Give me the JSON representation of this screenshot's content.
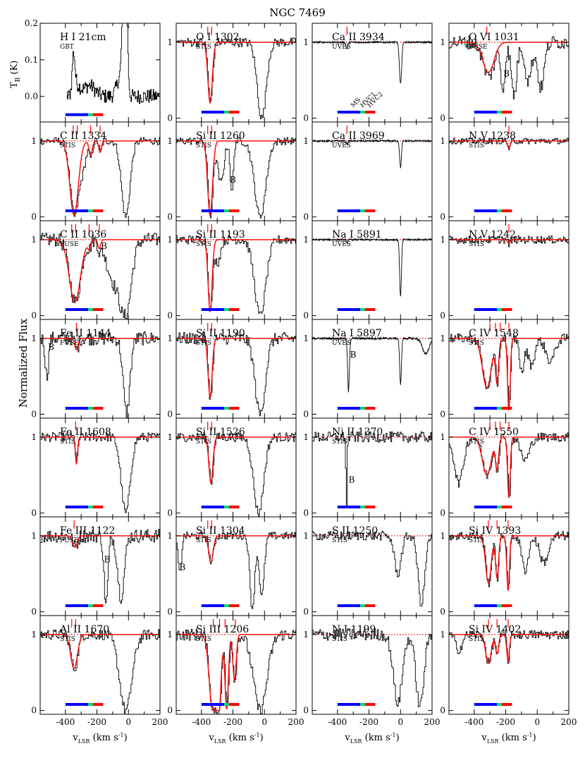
{
  "chart_data": {
    "type": "line",
    "title": "NGC 7469",
    "xlabel": "v",
    "xlabel_sub": "LSR",
    "xlabel_unit": "(km s",
    "xlabel_exp": "-1",
    "xlabel_close": ")",
    "ylabel_flux": "Normalized Flux",
    "ylabel_tb": "T",
    "ylabel_tb_sub": "B",
    "ylabel_tb_unit": "(K)",
    "xlim": [
      -560,
      200
    ],
    "xticks": [
      "-400",
      "-300",
      "-200",
      "-100",
      "0",
      "100",
      "200"
    ],
    "xtick_labels": [
      "-400",
      "-200",
      "0",
      "200"
    ],
    "ylim_flux": [
      -0.05,
      1.25
    ],
    "yticks_flux": [
      "0",
      "1"
    ],
    "ylim_hi": [
      -0.07,
      0.2
    ],
    "yticks_hi": [
      "0.2",
      "0.1",
      "0.0"
    ],
    "components": [
      {
        "name": "MS",
        "color": "#0000ff",
        "range": [
          -400,
          -255
        ]
      },
      {
        "name": "HVC1",
        "color": "#00dd66",
        "range": [
          -255,
          -225
        ]
      },
      {
        "name": "HVC2",
        "color": "#ff0000",
        "range": [
          -225,
          -160
        ]
      }
    ],
    "component_label_colors": [
      "#0000ff",
      "#00dd66",
      "#ff0000"
    ],
    "colors": {
      "data": "#000000",
      "model": "#ff0000",
      "ms": "#0000ff",
      "hvc1": "#00dd66",
      "hvc2": "#ff0000"
    },
    "panels": [
      [
        {
          "ion": "H I 21cm",
          "inst": "GBT",
          "type": "hi"
        },
        {
          "ion": "C II 1334",
          "inst": "STIS",
          "ticks": [
            -350,
            -325,
            -240,
            -180
          ],
          "absorbs": [
            [
              -345,
              0.98,
              38
            ],
            [
              -290,
              0.3,
              30
            ],
            [
              -240,
              0.2,
              14
            ],
            [
              -180,
              0.15,
              12
            ]
          ],
          "extra": [
            [
              -20,
              1.0,
              38
            ]
          ],
          "model": [
            [
              -345,
              0.98,
              38
            ],
            [
              -240,
              0.2,
              14
            ],
            [
              -180,
              0.15,
              12
            ]
          ],
          "noise": 0.05
        },
        {
          "ion": "C II 1036",
          "inst": "FUSE",
          "ticks": [
            -360,
            -335,
            -250,
            -185
          ],
          "absorbs": [
            [
              -340,
              0.82,
              50
            ],
            [
              -250,
              0.1,
              12
            ],
            [
              -185,
              0.12,
              12
            ],
            [
              -100,
              0.5,
              60
            ],
            [
              -20,
              0.95,
              50
            ]
          ],
          "model": [
            [
              -340,
              0.82,
              50
            ],
            [
              -250,
              0.1,
              12
            ],
            [
              -185,
              0.12,
              12
            ]
          ],
          "noise": 0.09,
          "labels": [
            [
              "B",
              -175,
              0.88
            ]
          ]
        },
        {
          "ion": "Fe II 1144",
          "inst": "FUSE",
          "ticks": [
            -330
          ],
          "absorbs": [
            [
              -330,
              0.15,
              15
            ],
            [
              -520,
              0.5,
              15
            ],
            [
              -15,
              0.98,
              30
            ]
          ],
          "model": [
            [
              -330,
              0.15,
              15
            ]
          ],
          "noise": 0.09,
          "labels": [
            [
              "B",
              -510,
              0.85
            ]
          ]
        },
        {
          "ion": "Fe II 1608",
          "inst": "STIS",
          "ticks": [
            -335
          ],
          "absorbs": [
            [
              -330,
              0.35,
              10
            ],
            [
              -20,
              1.0,
              40
            ]
          ],
          "model": [
            [
              -330,
              0.35,
              10
            ]
          ],
          "noise": 0.06
        },
        {
          "ion": "Fe III 1122",
          "inst": "FUSE",
          "ticks": [
            -345
          ],
          "absorbs": [
            [
              -340,
              0.15,
              20
            ],
            [
              -145,
              0.9,
              18
            ],
            [
              -50,
              0.8,
              30
            ]
          ],
          "model": [
            [
              -340,
              0.15,
              20
            ]
          ],
          "noise": 0.09,
          "labels": [
            [
              "B",
              -155,
              0.65
            ]
          ]
        },
        {
          "ion": "Al II 1670",
          "inst": "STIS",
          "ticks": [
            -360,
            -335
          ],
          "absorbs": [
            [
              -345,
              0.45,
              30
            ],
            [
              -20,
              1.0,
              55
            ]
          ],
          "model": [
            [
              -345,
              0.45,
              30
            ]
          ],
          "noise": 0.07
        }
      ],
      [
        {
          "ion": "O I 1302",
          "inst": "STIS",
          "ticks": [
            -360,
            -335
          ],
          "absorbs": [
            [
              -345,
              0.8,
              20
            ],
            [
              -20,
              1.0,
              40
            ]
          ],
          "model": [
            [
              -345,
              0.8,
              20
            ]
          ],
          "noise": 0.06
        },
        {
          "ion": "Si II 1260",
          "inst": "STIS",
          "ticks": [
            -360,
            -335
          ],
          "absorbs": [
            [
              -345,
              0.98,
              22
            ],
            [
              -280,
              0.55,
              28
            ],
            [
              -210,
              0.7,
              14
            ],
            [
              -30,
              1.0,
              50
            ]
          ],
          "model": [
            [
              -345,
              0.98,
              22
            ]
          ],
          "noise": 0.05,
          "labels": [
            [
              "B",
              -220,
              0.45
            ]
          ]
        },
        {
          "ion": "Si II 1193",
          "inst": "STIS",
          "ticks": [
            -360,
            -335
          ],
          "absorbs": [
            [
              -345,
              0.95,
              18
            ],
            [
              -300,
              0.3,
              25
            ],
            [
              -30,
              1.0,
              50
            ]
          ],
          "model": [
            [
              -345,
              0.95,
              18
            ]
          ],
          "noise": 0.06
        },
        {
          "ion": "Si II 1190",
          "inst": "STIS",
          "ticks": [
            -360,
            -335
          ],
          "absorbs": [
            [
              -345,
              0.78,
              18
            ],
            [
              -30,
              1.0,
              45
            ]
          ],
          "model": [
            [
              -345,
              0.78,
              18
            ]
          ],
          "noise": 0.08
        },
        {
          "ion": "Si II 1526",
          "inst": "STIS",
          "ticks": [
            -360,
            -335
          ],
          "absorbs": [
            [
              -340,
              0.6,
              18
            ],
            [
              -40,
              1.0,
              45
            ]
          ],
          "model": [
            [
              -340,
              0.6,
              18
            ]
          ],
          "noise": 0.06
        },
        {
          "ion": "Si II 1304",
          "inst": "STIS",
          "ticks": [
            -360,
            -335
          ],
          "absorbs": [
            [
              -340,
              0.35,
              20
            ],
            [
              -540,
              0.5,
              15
            ],
            [
              -80,
              0.95,
              22
            ],
            [
              -20,
              0.8,
              22
            ]
          ],
          "model": [
            [
              -340,
              0.35,
              20
            ]
          ],
          "noise": 0.05,
          "labels": [
            [
              "B",
              -540,
              0.55
            ]
          ]
        },
        {
          "ion": "Si III 1206",
          "inst": "STIS",
          "ticks": [
            -325,
            -285,
            -250,
            -185
          ],
          "absorbs": [
            [
              -330,
              0.98,
              30
            ],
            [
              -290,
              0.98,
              20
            ],
            [
              -240,
              0.98,
              15
            ],
            [
              -190,
              0.6,
              15
            ],
            [
              -30,
              1.0,
              60
            ]
          ],
          "model": [
            [
              -330,
              0.98,
              30
            ],
            [
              -290,
              0.98,
              20
            ],
            [
              -240,
              0.98,
              15
            ],
            [
              -190,
              0.6,
              15
            ]
          ],
          "noise": 0.08
        }
      ],
      [
        {
          "ion": "Ca II 3934",
          "inst": "UVES",
          "ticks": [
            -340
          ],
          "absorbs": [
            [
              -340,
              0.08,
              8
            ],
            [
              0,
              0.55,
              10
            ]
          ],
          "model": [],
          "noise": 0.012,
          "comp_labels": true
        },
        {
          "ion": "Ca II 3969",
          "inst": "UVES",
          "ticks": [
            -340
          ],
          "absorbs": [
            [
              -340,
              0.04,
              8
            ],
            [
              0,
              0.35,
              8
            ]
          ],
          "model": [],
          "noise": 0.012
        },
        {
          "ion": "Na I 5891",
          "inst": "UVES",
          "ticks": [],
          "absorbs": [
            [
              -340,
              0.04,
              6
            ],
            [
              0,
              0.75,
              8
            ]
          ],
          "model": [],
          "noise": 0.012
        },
        {
          "ion": "Na I 5897",
          "inst": "UVES",
          "ticks": [],
          "absorbs": [
            [
              -330,
              0.7,
              8
            ],
            [
              0,
              0.6,
              8
            ],
            [
              160,
              0.2,
              30
            ]
          ],
          "model": [],
          "noise": 0.015,
          "labels": [
            [
              "B",
              -320,
              0.75
            ]
          ]
        },
        {
          "ion": "Ni II 1370",
          "inst": "STIS",
          "ticks": [],
          "absorbs": [
            [
              -345,
              1.0,
              5
            ]
          ],
          "model": [],
          "noise": 0.07,
          "labels": [
            [
              "B",
              -330,
              0.4
            ]
          ]
        },
        {
          "ion": "S II 1250",
          "inst": "STIS",
          "ticks": [],
          "absorbs": [
            [
              -20,
              0.5,
              30
            ],
            [
              130,
              0.9,
              30
            ]
          ],
          "model": [],
          "noise": 0.06
        },
        {
          "ion": "N I 1199",
          "inst": "STIS",
          "ticks": [],
          "absorbs": [
            [
              -20,
              0.9,
              40
            ],
            [
              120,
              0.95,
              35
            ]
          ],
          "model": [],
          "noise": 0.08
        }
      ],
      [
        {
          "ion": "O VI 1031",
          "inst": "FUSE",
          "ticks": [
            -320
          ],
          "absorbs": [
            [
              -310,
              0.45,
              50
            ],
            [
              -220,
              0.6,
              20
            ],
            [
              -150,
              0.7,
              25
            ],
            [
              -60,
              0.5,
              30
            ],
            [
              20,
              0.6,
              30
            ]
          ],
          "model": [
            [
              -310,
              0.4,
              50
            ]
          ],
          "noise": 0.09,
          "labels": [
            [
              "B",
              -215,
              0.55
            ]
          ]
        },
        {
          "ion": "N V 1238",
          "inst": "STIS",
          "ticks": [
            -180
          ],
          "absorbs": [
            [
              -180,
              0.12,
              10
            ]
          ],
          "model": [
            [
              -180,
              0.1,
              10
            ]
          ],
          "noise": 0.04
        },
        {
          "ion": "N V 1242",
          "inst": "STIS",
          "ticks": [
            -180
          ],
          "absorbs": [
            [
              -180,
              0.06,
              10
            ]
          ],
          "model": [
            [
              -180,
              0.05,
              10
            ]
          ],
          "noise": 0.05
        },
        {
          "ion": "C IV 1548",
          "inst": "STIS",
          "ticks": [
            -300,
            -265,
            -235,
            -180
          ],
          "absorbs": [
            [
              -320,
              0.65,
              40
            ],
            [
              -255,
              0.55,
              14
            ],
            [
              -180,
              0.95,
              12
            ],
            [
              -100,
              0.45,
              20
            ],
            [
              -40,
              0.35,
              30
            ],
            [
              80,
              0.3,
              40
            ]
          ],
          "model": [
            [
              -320,
              0.65,
              40
            ],
            [
              -255,
              0.55,
              14
            ],
            [
              -180,
              0.95,
              12
            ]
          ],
          "noise": 0.06
        },
        {
          "ion": "C IV 1550",
          "inst": "STIS",
          "ticks": [
            -300,
            -265,
            -235,
            -180
          ],
          "absorbs": [
            [
              -320,
              0.5,
              40
            ],
            [
              -255,
              0.4,
              14
            ],
            [
              -180,
              0.8,
              12
            ],
            [
              -500,
              0.6,
              40
            ],
            [
              -80,
              0.3,
              40
            ]
          ],
          "model": [
            [
              -320,
              0.5,
              40
            ],
            [
              -255,
              0.4,
              14
            ],
            [
              -180,
              0.8,
              12
            ]
          ],
          "noise": 0.06
        },
        {
          "ion": "Si IV 1393",
          "inst": "STIS",
          "ticks": [
            -310,
            -255,
            -185
          ],
          "absorbs": [
            [
              -310,
              0.62,
              25
            ],
            [
              -255,
              0.55,
              14
            ],
            [
              -185,
              0.72,
              12
            ],
            [
              -80,
              0.45,
              30
            ],
            [
              40,
              0.35,
              40
            ]
          ],
          "model": [
            [
              -310,
              0.62,
              25
            ],
            [
              -255,
              0.55,
              14
            ],
            [
              -185,
              0.72,
              12
            ]
          ],
          "noise": 0.06
        },
        {
          "ion": "Si IV 1402",
          "inst": "STIS",
          "ticks": [
            -310,
            -255,
            -185
          ],
          "absorbs": [
            [
              -310,
              0.38,
              25
            ],
            [
              -255,
              0.25,
              14
            ],
            [
              -185,
              0.35,
              12
            ],
            [
              -500,
              0.2,
              30
            ]
          ],
          "model": [
            [
              -310,
              0.38,
              25
            ],
            [
              -255,
              0.25,
              14
            ],
            [
              -185,
              0.35,
              12
            ]
          ],
          "noise": 0.06
        }
      ]
    ]
  }
}
